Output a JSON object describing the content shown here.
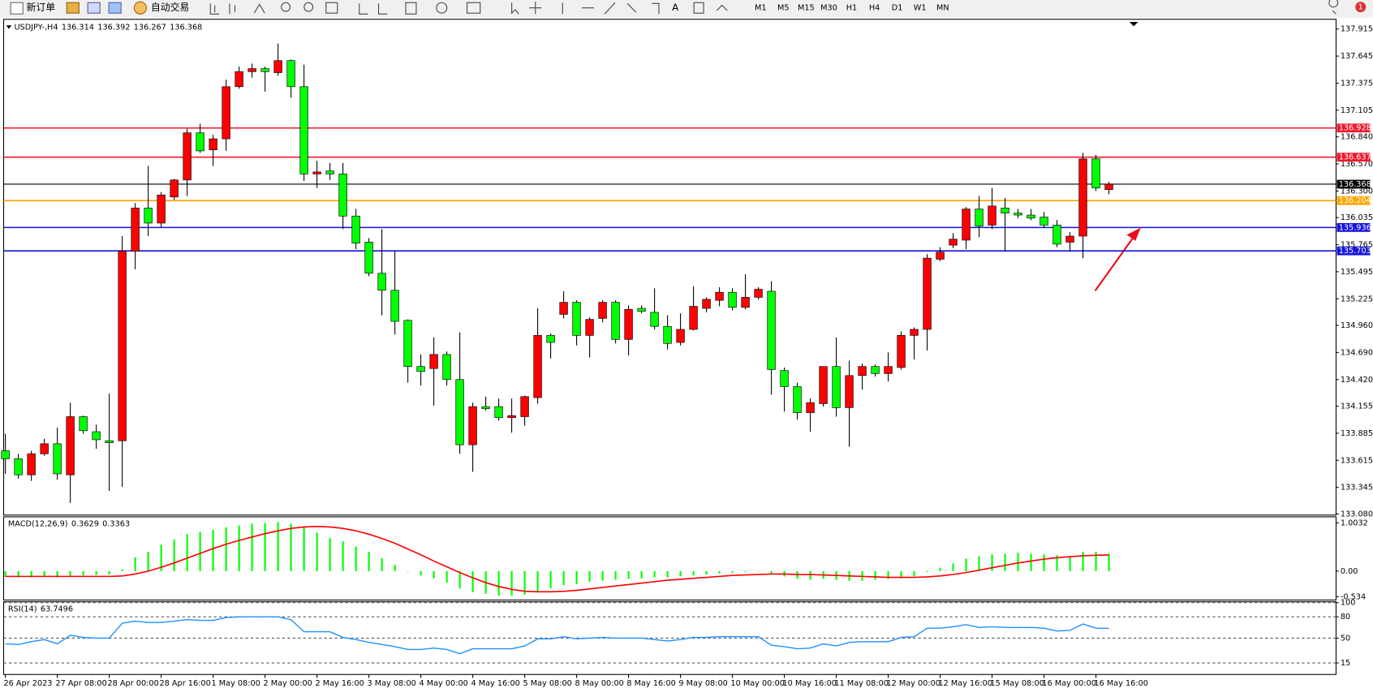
{
  "toolbar": {
    "new_order": "新订单",
    "auto_trade": "自动交易",
    "timeframes": [
      "M1",
      "M5",
      "M15",
      "M30",
      "H1",
      "H4",
      "D1",
      "W1",
      "MN"
    ],
    "notifications": 1
  },
  "chart_data": [
    {
      "type": "candlestick",
      "title": "USDJPY-,H4",
      "categories": [
        "26 Apr 2023",
        null,
        null,
        null,
        "27 Apr 08:00",
        null,
        null,
        null,
        "28 Apr 00:00",
        null,
        null,
        null,
        "28 Apr 16:00",
        null,
        null,
        null,
        "1 May 08:00",
        null,
        null,
        null,
        "2 May 00:00",
        null,
        null,
        null,
        "2 May 16:00",
        null,
        null,
        null,
        "3 May 08:00",
        null,
        null,
        null,
        "4 May 00:00",
        null,
        null,
        null,
        "4 May 16:00",
        null,
        null,
        null,
        "5 May 08:00",
        null,
        null,
        null,
        "8 May 00:00",
        null,
        null,
        null,
        "8 May 16:00",
        null,
        null,
        null,
        "9 May 08:00",
        null,
        null,
        null,
        "10 May 00:00",
        null,
        null,
        null,
        "10 May 16:00",
        null,
        null,
        null,
        "11 May 08:00",
        null,
        null,
        null,
        "12 May 00:00",
        null,
        null,
        null,
        "12 May 16:00",
        null,
        null,
        null,
        "15 May 08:00",
        null,
        null,
        null,
        "16 May 00:00",
        null,
        null,
        null,
        "16 May 16:00",
        null
      ],
      "open": [
        133.71,
        133.63,
        133.47,
        133.68,
        133.78,
        133.47,
        134.05,
        133.9,
        133.81,
        133.81,
        135.7,
        136.13,
        135.98,
        136.24,
        136.41,
        136.88,
        136.71,
        136.82,
        137.34,
        137.49,
        137.52,
        137.48,
        137.6,
        137.34,
        136.47,
        136.5,
        136.47,
        136.05,
        135.79,
        135.48,
        135.31,
        135.01,
        134.55,
        134.53,
        134.67,
        134.42,
        133.77,
        134.15,
        134.15,
        134.04,
        134.05,
        134.24,
        134.86,
        135.07,
        135.19,
        134.86,
        135.03,
        135.19,
        134.82,
        135.13,
        135.09,
        134.95,
        134.79,
        134.92,
        135.13,
        135.21,
        135.29,
        135.14,
        135.24,
        135.3,
        134.51,
        134.35,
        134.09,
        134.18,
        134.55,
        134.14,
        134.46,
        134.55,
        134.48,
        134.54,
        134.86,
        134.92,
        135.62,
        135.76,
        135.81,
        136.12,
        135.96,
        136.13,
        136.08,
        136.06,
        136.04,
        135.96,
        135.79,
        135.85,
        136.62,
        136.314
      ],
      "high": [
        133.88,
        133.68,
        133.71,
        133.83,
        133.94,
        134.19,
        134.06,
        133.97,
        134.28,
        135.85,
        136.18,
        136.55,
        136.29,
        136.42,
        136.92,
        136.97,
        136.86,
        137.41,
        137.54,
        137.57,
        137.54,
        137.77,
        137.61,
        137.56,
        136.6,
        136.58,
        136.58,
        136.12,
        135.83,
        135.92,
        135.7,
        135.02,
        134.67,
        134.84,
        134.7,
        134.89,
        134.19,
        134.25,
        134.23,
        134.23,
        134.26,
        135.13,
        134.88,
        135.3,
        135.21,
        135.04,
        135.21,
        135.21,
        135.16,
        135.16,
        135.33,
        135.06,
        135.08,
        135.35,
        135.24,
        135.34,
        135.33,
        135.47,
        135.34,
        135.4,
        134.54,
        134.39,
        134.23,
        134.55,
        134.84,
        134.61,
        134.58,
        134.57,
        134.69,
        134.9,
        134.94,
        135.67,
        135.74,
        135.88,
        136.14,
        136.25,
        136.33,
        136.23,
        136.12,
        136.12,
        136.09,
        136.01,
        135.89,
        136.68,
        136.66,
        136.392
      ],
      "low": [
        133.48,
        133.43,
        133.41,
        133.66,
        133.42,
        133.19,
        133.88,
        133.73,
        133.31,
        133.35,
        135.52,
        135.85,
        135.94,
        136.21,
        136.25,
        136.68,
        136.55,
        136.7,
        137.32,
        137.43,
        137.29,
        137.45,
        137.23,
        136.4,
        136.33,
        136.41,
        135.92,
        135.72,
        135.45,
        135.06,
        134.87,
        134.39,
        134.36,
        134.16,
        134.36,
        133.68,
        133.5,
        134.11,
        134.01,
        133.89,
        133.96,
        134.18,
        134.63,
        135.03,
        134.76,
        134.64,
        134.99,
        134.78,
        134.66,
        135.08,
        134.92,
        134.72,
        134.76,
        134.91,
        135.09,
        135.15,
        135.11,
        135.12,
        135.22,
        134.27,
        134.1,
        134.02,
        133.9,
        134.15,
        134.05,
        133.75,
        134.32,
        134.45,
        134.4,
        134.52,
        134.62,
        134.71,
        135.6,
        135.73,
        135.72,
        135.84,
        135.92,
        135.7,
        136.03,
        136.01,
        135.93,
        135.74,
        135.7,
        135.63,
        136.3,
        136.267
      ],
      "close": [
        133.63,
        133.47,
        133.68,
        133.78,
        133.48,
        134.05,
        133.91,
        133.82,
        133.79,
        135.7,
        136.13,
        135.98,
        136.26,
        136.41,
        136.88,
        136.7,
        136.82,
        137.34,
        137.49,
        137.52,
        137.49,
        137.6,
        137.34,
        136.47,
        136.49,
        136.47,
        136.05,
        135.78,
        135.48,
        135.31,
        135.0,
        134.55,
        134.5,
        134.67,
        134.42,
        133.77,
        134.15,
        134.13,
        134.04,
        134.06,
        134.25,
        134.86,
        134.79,
        135.19,
        134.86,
        135.02,
        135.19,
        134.82,
        135.12,
        135.1,
        134.95,
        134.78,
        134.92,
        135.15,
        135.22,
        135.29,
        135.14,
        135.24,
        135.32,
        134.52,
        134.35,
        134.09,
        134.19,
        134.55,
        134.14,
        134.46,
        134.55,
        134.48,
        134.55,
        134.86,
        134.92,
        135.63,
        135.69,
        135.82,
        136.12,
        135.95,
        136.15,
        136.08,
        136.06,
        136.03,
        135.96,
        135.77,
        135.85,
        136.62,
        136.33,
        136.368
      ],
      "up_color": "#ff0000",
      "down_color": "#00ff00",
      "ylim": [
        133.069,
        138.012
      ],
      "yticks": [
        137.915,
        137.645,
        137.375,
        137.105,
        {
          "value": 136.84,
          "label": "136.840"
        },
        {
          "value": 136.57,
          "label": "136.570"
        },
        {
          "value": 136.3,
          "label": "136.300"
        },
        136.035,
        135.765,
        135.495,
        135.225,
        {
          "value": 134.96,
          "label": "134.960"
        },
        {
          "value": 134.69,
          "label": "134.690"
        },
        {
          "value": 134.42,
          "label": "134.420"
        },
        134.155,
        133.885,
        133.615,
        133.345,
        {
          "value": 133.08,
          "label": "133.080"
        }
      ],
      "hlines": [
        {
          "value": 136.928,
          "color": "#f0162c"
        },
        {
          "value": 136.637,
          "color": "#f0162c"
        },
        {
          "value": 136.368,
          "color": "#000000"
        },
        {
          "value": 136.204,
          "color": "#ffa500"
        },
        {
          "value": 135.936,
          "color": "#1414d8"
        },
        {
          "value": 135.703,
          "color": "#1414d8"
        }
      ]
    },
    {
      "type": "macd",
      "title": "MACD(12,26,9)",
      "values": [
        -0.12,
        -0.13,
        -0.13,
        -0.12,
        -0.13,
        -0.1,
        -0.09,
        -0.08,
        -0.07,
        0.04,
        0.29,
        0.4,
        0.55,
        0.66,
        0.77,
        0.82,
        0.86,
        0.91,
        0.95,
        0.99,
        1.0,
        1.02,
        0.99,
        0.91,
        0.8,
        0.69,
        0.62,
        0.51,
        0.4,
        0.27,
        0.13,
        0.0,
        -0.09,
        -0.15,
        -0.24,
        -0.36,
        -0.44,
        -0.47,
        -0.51,
        -0.51,
        -0.49,
        -0.42,
        -0.36,
        -0.29,
        -0.27,
        -0.22,
        -0.2,
        -0.18,
        -0.16,
        -0.15,
        -0.13,
        -0.13,
        -0.11,
        -0.09,
        -0.07,
        -0.05,
        -0.04,
        -0.02,
        0.0,
        -0.07,
        -0.11,
        -0.16,
        -0.18,
        -0.16,
        -0.18,
        -0.2,
        -0.2,
        -0.18,
        -0.16,
        -0.15,
        -0.11,
        -0.02,
        0.07,
        0.16,
        0.26,
        0.31,
        0.35,
        0.36,
        0.38,
        0.36,
        0.35,
        0.33,
        0.31,
        0.4,
        0.4,
        0.3629
      ],
      "signal": [
        -0.11,
        -0.11,
        -0.11,
        -0.11,
        -0.11,
        -0.11,
        -0.11,
        -0.11,
        -0.11,
        -0.1,
        -0.06,
        0.0,
        0.08,
        0.17,
        0.27,
        0.37,
        0.47,
        0.56,
        0.64,
        0.71,
        0.78,
        0.84,
        0.89,
        0.92,
        0.93,
        0.92,
        0.89,
        0.84,
        0.77,
        0.68,
        0.58,
        0.46,
        0.34,
        0.21,
        0.09,
        -0.03,
        -0.14,
        -0.24,
        -0.32,
        -0.38,
        -0.42,
        -0.43,
        -0.43,
        -0.42,
        -0.4,
        -0.37,
        -0.34,
        -0.31,
        -0.28,
        -0.25,
        -0.22,
        -0.19,
        -0.17,
        -0.15,
        -0.13,
        -0.11,
        -0.09,
        -0.08,
        -0.07,
        -0.06,
        -0.06,
        -0.07,
        -0.07,
        -0.08,
        -0.09,
        -0.1,
        -0.11,
        -0.12,
        -0.13,
        -0.13,
        -0.13,
        -0.12,
        -0.1,
        -0.07,
        -0.03,
        0.02,
        0.07,
        0.12,
        0.17,
        0.21,
        0.25,
        0.28,
        0.3,
        0.32,
        0.33,
        0.3363
      ],
      "histogram_color": "#00ff00",
      "signal_color": "#ff0000",
      "ylim": [
        -0.602,
        1.131
      ],
      "yticks": [
        1.0032,
        {
          "value": 0,
          "label": "0.00"
        },
        -0.534
      ]
    },
    {
      "type": "rsi",
      "title": "RSI(14)",
      "values": [
        42,
        41,
        45,
        48,
        42,
        54,
        51,
        50,
        50,
        71,
        74,
        72,
        72,
        74,
        76,
        75,
        75,
        79,
        80,
        80,
        80,
        80,
        76,
        59,
        59,
        59,
        51,
        48,
        44,
        41,
        38,
        34,
        34,
        36,
        34,
        28,
        35,
        35,
        35,
        35,
        39,
        49,
        49,
        52,
        49,
        50,
        51,
        50,
        50,
        50,
        48,
        46,
        48,
        51,
        51,
        52,
        52,
        52,
        52,
        40,
        38,
        35,
        36,
        42,
        39,
        44,
        45,
        45,
        45,
        51,
        52,
        64,
        64,
        66,
        69,
        65,
        66,
        65,
        65,
        65,
        64,
        60,
        61,
        70,
        64,
        63.7496
      ],
      "color": "#1e90ff",
      "ylim": [
        -1.25,
        101.25
      ],
      "yticks": [
        100,
        80,
        50,
        15
      ]
    }
  ]
}
